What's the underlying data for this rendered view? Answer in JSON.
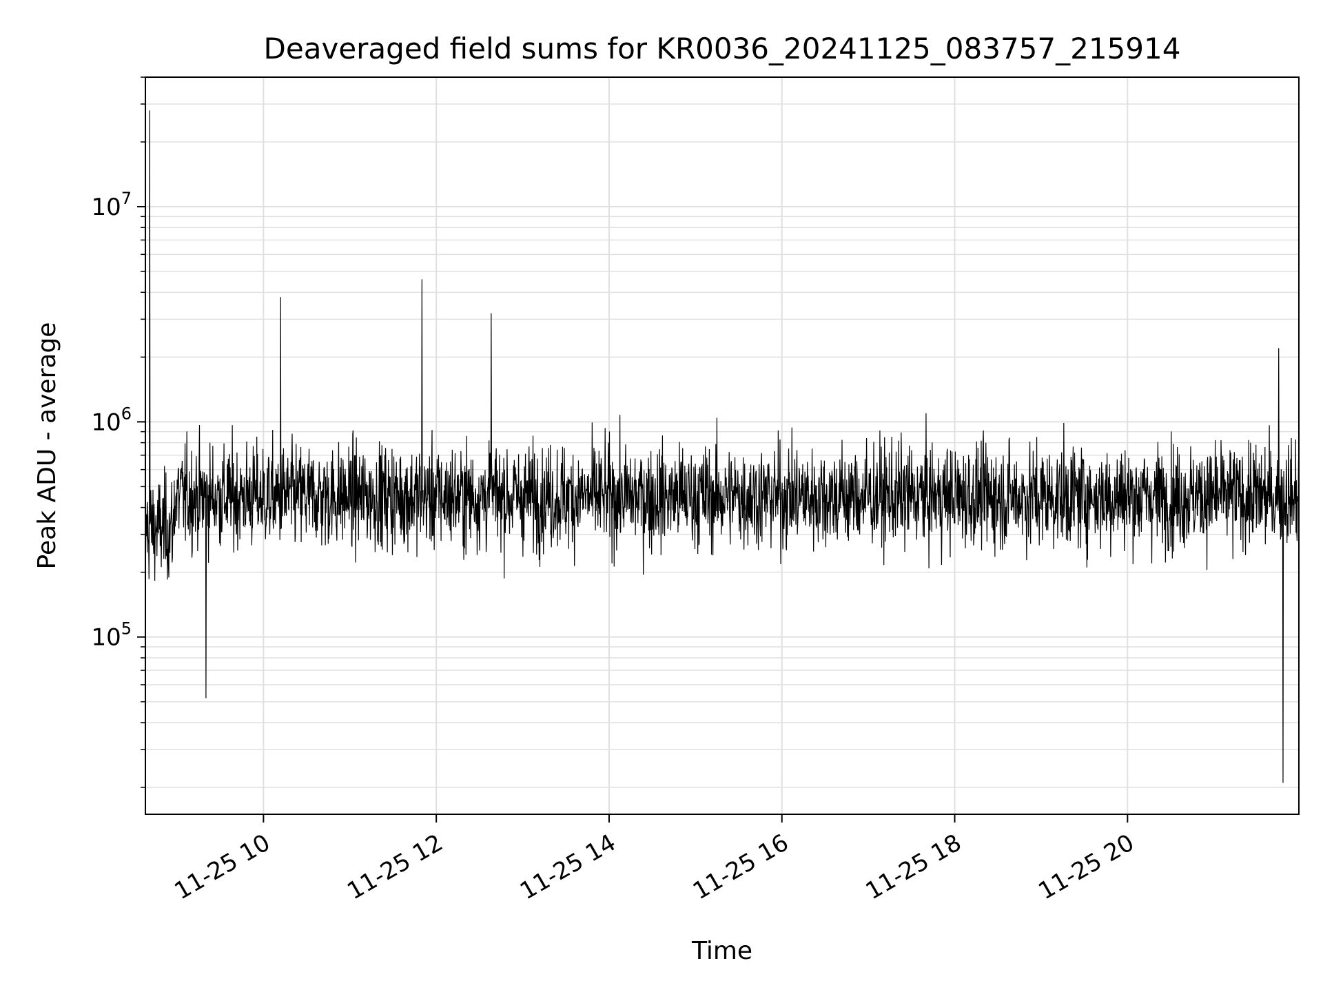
{
  "chart_data": {
    "type": "line",
    "title": "Deaveraged field sums for KR0036_20241125_083757_215914",
    "xlabel": "Time",
    "ylabel": "Peak ADU - average",
    "x_start": "2024-11-25 08:38",
    "x_end": "2024-11-25 21:59",
    "xlim": [
      "2024-11-25 08:38",
      "2024-11-25 21:59"
    ],
    "ylim": [
      15000,
      40000000
    ],
    "yscale": "log",
    "x_tick_labels": [
      "11-25 10",
      "11-25 12",
      "11-25 14",
      "11-25 16",
      "11-25 18",
      "11-25 20"
    ],
    "y_tick_labels": [
      {
        "base": "10",
        "exp": "5",
        "value": 100000
      },
      {
        "base": "10",
        "exp": "6",
        "value": 1000000
      },
      {
        "base": "10",
        "exp": "7",
        "value": 10000000
      }
    ],
    "grid": true,
    "line_color": "#000000",
    "grid_color": "#e0e0e0",
    "baseline": 450000,
    "series": [
      {
        "values_note": "",
        "peaks": [
          {
            "time": "2024-11-25 08:41",
            "value": 28000000
          },
          {
            "time": "2024-11-25 10:12",
            "value": 3800000
          },
          {
            "time": "2024-11-25 11:50",
            "value": 4600000
          },
          {
            "time": "2024-11-25 12:38",
            "value": 3200000
          },
          {
            "time": "2024-11-25 21:45",
            "value": 2200000
          }
        ],
        "dips": [
          {
            "time": "2024-11-25 09:20",
            "value": 52000
          },
          {
            "time": "2024-11-25 21:48",
            "value": 21000
          }
        ]
      }
    ]
  }
}
